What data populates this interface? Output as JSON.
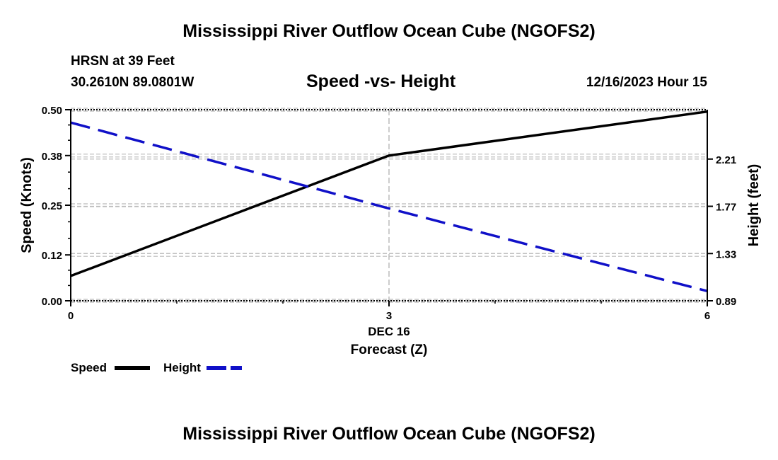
{
  "header": {
    "title": "Mississippi River Outflow Ocean Cube (NGOFS2)",
    "station": "HRSN at 39 Feet",
    "coordinates": "30.2610N  89.0801W",
    "chart_title": "Speed -vs- Height",
    "datetime": "12/16/2023 Hour 15"
  },
  "footer": {
    "title": "Mississippi River Outflow Ocean Cube (NGOFS2)"
  },
  "colors": {
    "speed": "#000000",
    "height": "#1010c8",
    "grid": "#bbbbbb"
  },
  "chart_data": {
    "type": "line",
    "title": "Speed -vs- Height",
    "xlabel": "Forecast (Z)",
    "x_date_label": "DEC 16",
    "x": [
      0,
      3,
      6
    ],
    "xlim": [
      0,
      6
    ],
    "x_ticks": [
      0,
      3,
      6
    ],
    "y_left": {
      "label": "Speed (Knots)",
      "range": [
        0,
        0.5
      ],
      "ticks": [
        "0.00",
        "0.12",
        "0.25",
        "0.38",
        "0.50"
      ]
    },
    "y_right": {
      "label": "Height (feet)",
      "range": [
        0.89,
        2.67
      ],
      "ticks": [
        "0.89",
        "1.33",
        "1.77",
        "2.21"
      ]
    },
    "series": [
      {
        "name": "Speed",
        "axis": "left",
        "style": "solid",
        "values": [
          0.065,
          0.38,
          0.495
        ]
      },
      {
        "name": "Height",
        "axis": "right",
        "style": "dashed",
        "values": [
          2.55,
          1.75,
          0.98
        ]
      }
    ],
    "legend": [
      "Speed",
      "Height"
    ],
    "legend_position": "bottom-left",
    "grid": true
  }
}
